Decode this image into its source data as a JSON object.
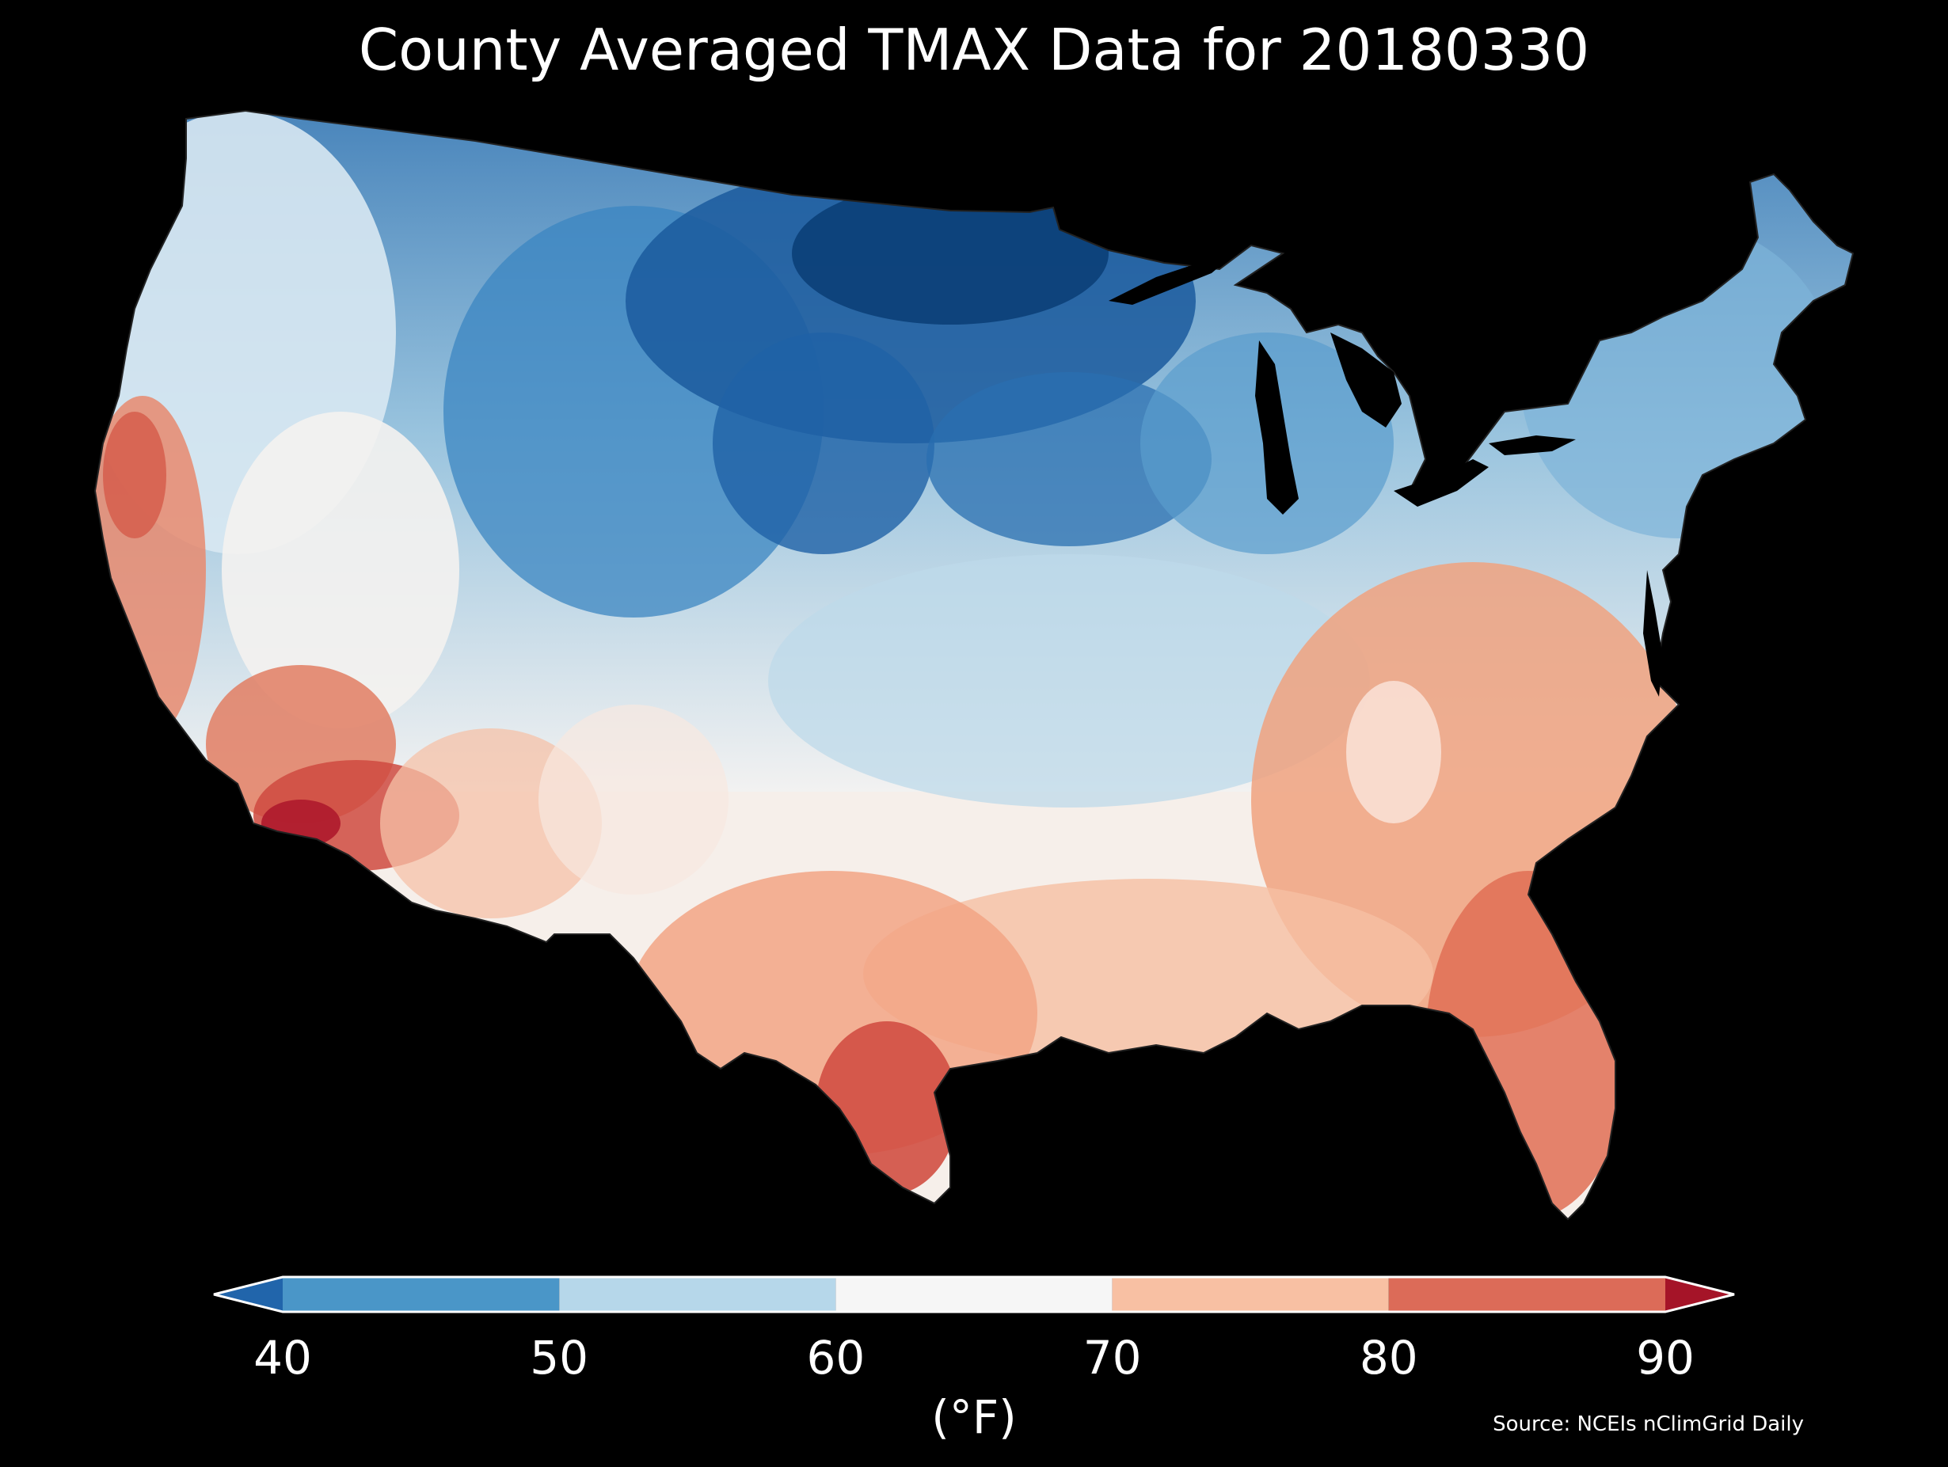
{
  "title": "County Averaged TMAX Data for 20180330",
  "colorbar": {
    "ticks": [
      "40",
      "50",
      "60",
      "70",
      "80",
      "90"
    ],
    "units": "(°F)",
    "bins": [
      {
        "from": 40,
        "to": 50,
        "color": "#4a96c8"
      },
      {
        "from": 50,
        "to": 60,
        "color": "#b6d7ea"
      },
      {
        "from": 60,
        "to": 70,
        "color": "#f6f6f6"
      },
      {
        "from": 70,
        "to": 80,
        "color": "#f8c0a3"
      },
      {
        "from": 80,
        "to": 90,
        "color": "#dc6b58"
      }
    ],
    "under_color": "#2165ab",
    "over_color": "#a51428",
    "extend": "both"
  },
  "source": "Source: NCEIs nClimGrid Daily",
  "map": {
    "subject": "Contiguous United States, county-level maximum temperature",
    "regional_pattern": [
      {
        "region": "Northern Plains / Minnesota",
        "range": "below 40"
      },
      {
        "region": "Upper Midwest / Great Lakes",
        "range": "40-50"
      },
      {
        "region": "Northern Rockies",
        "range": "40-50"
      },
      {
        "region": "Pacific Northwest",
        "range": "50-60"
      },
      {
        "region": "Great Basin",
        "range": "60-70"
      },
      {
        "region": "Northeast / New England",
        "range": "40-60"
      },
      {
        "region": "Central Plains / Ohio Valley",
        "range": "50-60"
      },
      {
        "region": "Southeast / Mid-Atlantic",
        "range": "70-80"
      },
      {
        "region": "Texas / Gulf Coast",
        "range": "70-80"
      },
      {
        "region": "Coastal California",
        "range": "70-80"
      },
      {
        "region": "Southern Arizona / Lower Rio Grande",
        "range": "above 80"
      },
      {
        "region": "Florida peninsula",
        "range": "80-90"
      }
    ]
  }
}
